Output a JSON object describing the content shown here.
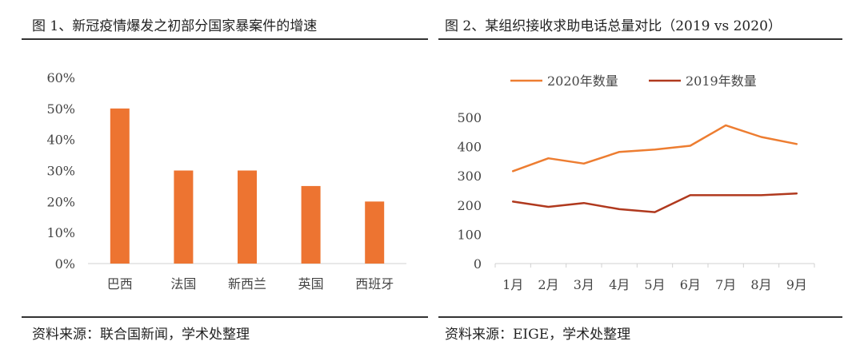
{
  "left_panel": {
    "title": "图 1、新冠疫情爆发之初部分国家暴案件的增速",
    "source": "资料来源：联合国新闻，学术处整理"
  },
  "right_panel": {
    "title": "图 2、某组织接收求助电话总量对比（2019 vs 2020）",
    "source": "资料来源：EIGE，学术处整理"
  },
  "colors": {
    "bar": "#ED7431",
    "series_2020": "#ED7D31",
    "series_2019": "#B0391E",
    "axis": "#d0d0d0"
  },
  "chart_data": [
    {
      "type": "bar",
      "title": "图 1、新冠疫情爆发之初部分国家暴案件的增速",
      "categories": [
        "巴西",
        "法国",
        "新西兰",
        "英国",
        "西班牙"
      ],
      "values": [
        50,
        30,
        30,
        25,
        20
      ],
      "unit": "%",
      "ylim": [
        0,
        60
      ],
      "yticks": [
        0,
        10,
        20,
        30,
        40,
        50,
        60
      ],
      "ytick_labels": [
        "0%",
        "10%",
        "20%",
        "30%",
        "40%",
        "50%",
        "60%"
      ],
      "grid": false,
      "legend": "none"
    },
    {
      "type": "line",
      "title": "图 2、某组织接收求助电话总量对比（2019 vs 2020）",
      "categories": [
        "1月",
        "2月",
        "3月",
        "4月",
        "5月",
        "6月",
        "7月",
        "8月",
        "9月"
      ],
      "series": [
        {
          "name": "2020年数量",
          "values": [
            316,
            360,
            342,
            382,
            390,
            403,
            473,
            433,
            409
          ]
        },
        {
          "name": "2019年数量",
          "values": [
            212,
            194,
            207,
            186,
            176,
            234,
            234,
            234,
            240
          ]
        }
      ],
      "ylim": [
        0,
        500
      ],
      "yticks": [
        0,
        100,
        200,
        300,
        400,
        500
      ],
      "grid": false,
      "legend": "top"
    }
  ]
}
